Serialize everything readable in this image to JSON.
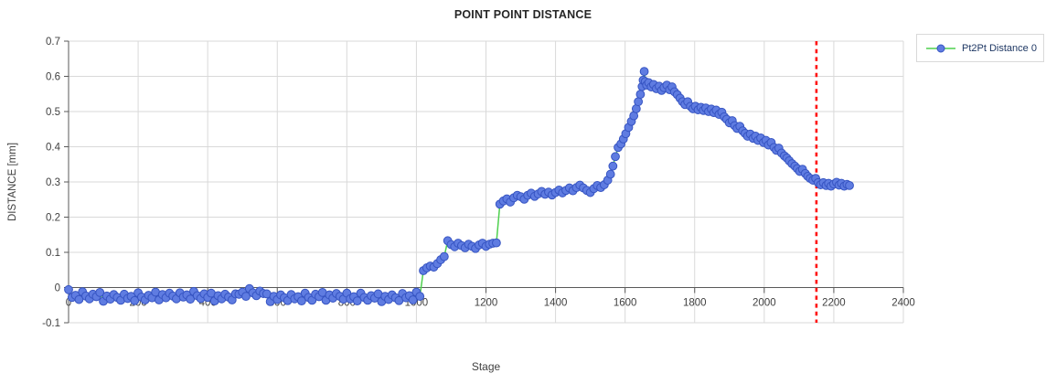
{
  "chart": {
    "title": "POINT POINT DISTANCE",
    "xlabel": "Stage",
    "ylabel": "DISTANCE [mm]",
    "legend": {
      "label": "Pt2Pt Distance 0"
    }
  },
  "colors": {
    "marker_fill": "#5f7ce1",
    "marker_stroke": "#3654c2",
    "line": "#4ed04e",
    "cursor": "#ff1111",
    "grid": "#d9d9d9",
    "axis": "#595959",
    "tick_text": "#404040",
    "title_text": "#262626",
    "legend_text": "#1f3864",
    "legend_border": "#d9d9d9",
    "background": "#ffffff"
  },
  "chart_data": {
    "type": "scatter",
    "title": "POINT POINT DISTANCE",
    "xlabel": "Stage",
    "ylabel": "DISTANCE [mm]",
    "xlim": [
      0,
      2400
    ],
    "ylim": [
      -0.1,
      0.7
    ],
    "x_ticks": [
      0,
      200,
      400,
      600,
      800,
      1000,
      1200,
      1400,
      1600,
      1800,
      2000,
      2200,
      2400
    ],
    "y_ticks": [
      -0.1,
      0,
      0.1,
      0.2,
      0.3,
      0.4,
      0.5,
      0.6,
      0.7
    ],
    "grid": true,
    "legend_position": "top-right",
    "cursor_line_x": 2150,
    "series": [
      {
        "name": "Pt2Pt Distance 0",
        "marker": "circle",
        "points": [
          [
            0,
            -0.006
          ],
          [
            10,
            -0.028
          ],
          [
            20,
            -0.022
          ],
          [
            30,
            -0.034
          ],
          [
            40,
            -0.012
          ],
          [
            50,
            -0.024
          ],
          [
            60,
            -0.032
          ],
          [
            70,
            -0.019
          ],
          [
            80,
            -0.026
          ],
          [
            90,
            -0.014
          ],
          [
            100,
            -0.039
          ],
          [
            110,
            -0.024
          ],
          [
            120,
            -0.033
          ],
          [
            130,
            -0.02
          ],
          [
            140,
            -0.028
          ],
          [
            150,
            -0.036
          ],
          [
            160,
            -0.019
          ],
          [
            170,
            -0.031
          ],
          [
            180,
            -0.025
          ],
          [
            190,
            -0.037
          ],
          [
            200,
            -0.015
          ],
          [
            210,
            -0.027
          ],
          [
            220,
            -0.035
          ],
          [
            230,
            -0.022
          ],
          [
            240,
            -0.029
          ],
          [
            250,
            -0.013
          ],
          [
            260,
            -0.035
          ],
          [
            270,
            -0.02
          ],
          [
            280,
            -0.029
          ],
          [
            290,
            -0.016
          ],
          [
            300,
            -0.024
          ],
          [
            310,
            -0.032
          ],
          [
            320,
            -0.015
          ],
          [
            330,
            -0.027
          ],
          [
            340,
            -0.021
          ],
          [
            350,
            -0.033
          ],
          [
            360,
            -0.011
          ],
          [
            370,
            -0.023
          ],
          [
            380,
            -0.031
          ],
          [
            390,
            -0.018
          ],
          [
            400,
            -0.028
          ],
          [
            410,
            -0.016
          ],
          [
            420,
            -0.038
          ],
          [
            430,
            -0.023
          ],
          [
            440,
            -0.032
          ],
          [
            450,
            -0.019
          ],
          [
            460,
            -0.027
          ],
          [
            470,
            -0.035
          ],
          [
            480,
            -0.018
          ],
          [
            490,
            -0.019
          ],
          [
            500,
            -0.013
          ],
          [
            510,
            -0.025
          ],
          [
            520,
            -0.003
          ],
          [
            530,
            -0.015
          ],
          [
            540,
            -0.023
          ],
          [
            550,
            -0.01
          ],
          [
            560,
            -0.017
          ],
          [
            570,
            -0.018
          ],
          [
            580,
            -0.04
          ],
          [
            590,
            -0.025
          ],
          [
            600,
            -0.034
          ],
          [
            610,
            -0.021
          ],
          [
            620,
            -0.029
          ],
          [
            630,
            -0.037
          ],
          [
            640,
            -0.02
          ],
          [
            650,
            -0.032
          ],
          [
            660,
            -0.026
          ],
          [
            670,
            -0.038
          ],
          [
            680,
            -0.016
          ],
          [
            690,
            -0.028
          ],
          [
            700,
            -0.036
          ],
          [
            710,
            -0.019
          ],
          [
            720,
            -0.026
          ],
          [
            730,
            -0.014
          ],
          [
            740,
            -0.036
          ],
          [
            750,
            -0.021
          ],
          [
            760,
            -0.03
          ],
          [
            770,
            -0.017
          ],
          [
            780,
            -0.025
          ],
          [
            790,
            -0.033
          ],
          [
            800,
            -0.016
          ],
          [
            810,
            -0.032
          ],
          [
            820,
            -0.026
          ],
          [
            830,
            -0.038
          ],
          [
            840,
            -0.016
          ],
          [
            850,
            -0.028
          ],
          [
            860,
            -0.036
          ],
          [
            870,
            -0.023
          ],
          [
            880,
            -0.03
          ],
          [
            890,
            -0.018
          ],
          [
            900,
            -0.04
          ],
          [
            910,
            -0.025
          ],
          [
            920,
            -0.034
          ],
          [
            930,
            -0.021
          ],
          [
            940,
            -0.029
          ],
          [
            950,
            -0.037
          ],
          [
            960,
            -0.017
          ],
          [
            970,
            -0.029
          ],
          [
            980,
            -0.023
          ],
          [
            990,
            -0.035
          ],
          [
            1000,
            -0.013
          ],
          [
            1010,
            -0.025
          ],
          [
            1020,
            0.048
          ],
          [
            1030,
            0.056
          ],
          [
            1040,
            0.061
          ],
          [
            1050,
            0.058
          ],
          [
            1060,
            0.068
          ],
          [
            1070,
            0.079
          ],
          [
            1080,
            0.088
          ],
          [
            1090,
            0.133
          ],
          [
            1100,
            0.122
          ],
          [
            1110,
            0.116
          ],
          [
            1120,
            0.126
          ],
          [
            1130,
            0.119
          ],
          [
            1140,
            0.113
          ],
          [
            1150,
            0.123
          ],
          [
            1160,
            0.117
          ],
          [
            1170,
            0.111
          ],
          [
            1180,
            0.121
          ],
          [
            1190,
            0.126
          ],
          [
            1200,
            0.117
          ],
          [
            1210,
            0.123
          ],
          [
            1220,
            0.126
          ],
          [
            1230,
            0.127
          ],
          [
            1240,
            0.237
          ],
          [
            1250,
            0.246
          ],
          [
            1260,
            0.252
          ],
          [
            1270,
            0.243
          ],
          [
            1280,
            0.255
          ],
          [
            1290,
            0.262
          ],
          [
            1300,
            0.258
          ],
          [
            1310,
            0.251
          ],
          [
            1320,
            0.262
          ],
          [
            1330,
            0.268
          ],
          [
            1340,
            0.259
          ],
          [
            1350,
            0.266
          ],
          [
            1360,
            0.273
          ],
          [
            1370,
            0.265
          ],
          [
            1380,
            0.271
          ],
          [
            1390,
            0.263
          ],
          [
            1400,
            0.27
          ],
          [
            1410,
            0.277
          ],
          [
            1420,
            0.269
          ],
          [
            1430,
            0.276
          ],
          [
            1440,
            0.283
          ],
          [
            1450,
            0.275
          ],
          [
            1460,
            0.284
          ],
          [
            1470,
            0.291
          ],
          [
            1480,
            0.283
          ],
          [
            1490,
            0.276
          ],
          [
            1500,
            0.27
          ],
          [
            1510,
            0.281
          ],
          [
            1520,
            0.29
          ],
          [
            1530,
            0.284
          ],
          [
            1540,
            0.292
          ],
          [
            1550,
            0.305
          ],
          [
            1558,
            0.322
          ],
          [
            1565,
            0.345
          ],
          [
            1572,
            0.372
          ],
          [
            1580,
            0.398
          ],
          [
            1588,
            0.408
          ],
          [
            1595,
            0.422
          ],
          [
            1602,
            0.437
          ],
          [
            1610,
            0.455
          ],
          [
            1618,
            0.472
          ],
          [
            1625,
            0.488
          ],
          [
            1632,
            0.508
          ],
          [
            1638,
            0.528
          ],
          [
            1644,
            0.549
          ],
          [
            1649,
            0.571
          ],
          [
            1652,
            0.589
          ],
          [
            1655,
            0.614
          ],
          [
            1658,
            0.585
          ],
          [
            1662,
            0.575
          ],
          [
            1668,
            0.582
          ],
          [
            1675,
            0.57
          ],
          [
            1682,
            0.577
          ],
          [
            1690,
            0.565
          ],
          [
            1698,
            0.572
          ],
          [
            1705,
            0.56
          ],
          [
            1712,
            0.568
          ],
          [
            1720,
            0.575
          ],
          [
            1728,
            0.562
          ],
          [
            1735,
            0.57
          ],
          [
            1742,
            0.556
          ],
          [
            1750,
            0.548
          ],
          [
            1758,
            0.538
          ],
          [
            1765,
            0.528
          ],
          [
            1772,
            0.52
          ],
          [
            1780,
            0.528
          ],
          [
            1788,
            0.515
          ],
          [
            1795,
            0.508
          ],
          [
            1802,
            0.515
          ],
          [
            1810,
            0.505
          ],
          [
            1818,
            0.512
          ],
          [
            1825,
            0.503
          ],
          [
            1832,
            0.51
          ],
          [
            1840,
            0.5
          ],
          [
            1848,
            0.507
          ],
          [
            1855,
            0.497
          ],
          [
            1862,
            0.504
          ],
          [
            1870,
            0.492
          ],
          [
            1878,
            0.498
          ],
          [
            1885,
            0.485
          ],
          [
            1892,
            0.478
          ],
          [
            1900,
            0.468
          ],
          [
            1908,
            0.474
          ],
          [
            1915,
            0.46
          ],
          [
            1922,
            0.452
          ],
          [
            1930,
            0.458
          ],
          [
            1938,
            0.445
          ],
          [
            1945,
            0.438
          ],
          [
            1952,
            0.43
          ],
          [
            1960,
            0.436
          ],
          [
            1968,
            0.424
          ],
          [
            1975,
            0.43
          ],
          [
            1982,
            0.418
          ],
          [
            1990,
            0.425
          ],
          [
            1998,
            0.412
          ],
          [
            2005,
            0.418
          ],
          [
            2012,
            0.405
          ],
          [
            2020,
            0.412
          ],
          [
            2028,
            0.398
          ],
          [
            2035,
            0.39
          ],
          [
            2042,
            0.396
          ],
          [
            2050,
            0.382
          ],
          [
            2058,
            0.374
          ],
          [
            2065,
            0.368
          ],
          [
            2072,
            0.36
          ],
          [
            2080,
            0.352
          ],
          [
            2088,
            0.345
          ],
          [
            2095,
            0.338
          ],
          [
            2102,
            0.33
          ],
          [
            2110,
            0.336
          ],
          [
            2118,
            0.324
          ],
          [
            2125,
            0.316
          ],
          [
            2132,
            0.31
          ],
          [
            2140,
            0.305
          ],
          [
            2148,
            0.31
          ],
          [
            2155,
            0.298
          ],
          [
            2162,
            0.292
          ],
          [
            2170,
            0.298
          ],
          [
            2178,
            0.29
          ],
          [
            2185,
            0.296
          ],
          [
            2192,
            0.288
          ],
          [
            2200,
            0.294
          ],
          [
            2208,
            0.299
          ],
          [
            2215,
            0.291
          ],
          [
            2222,
            0.296
          ],
          [
            2230,
            0.288
          ],
          [
            2238,
            0.293
          ],
          [
            2245,
            0.29
          ]
        ]
      }
    ]
  }
}
